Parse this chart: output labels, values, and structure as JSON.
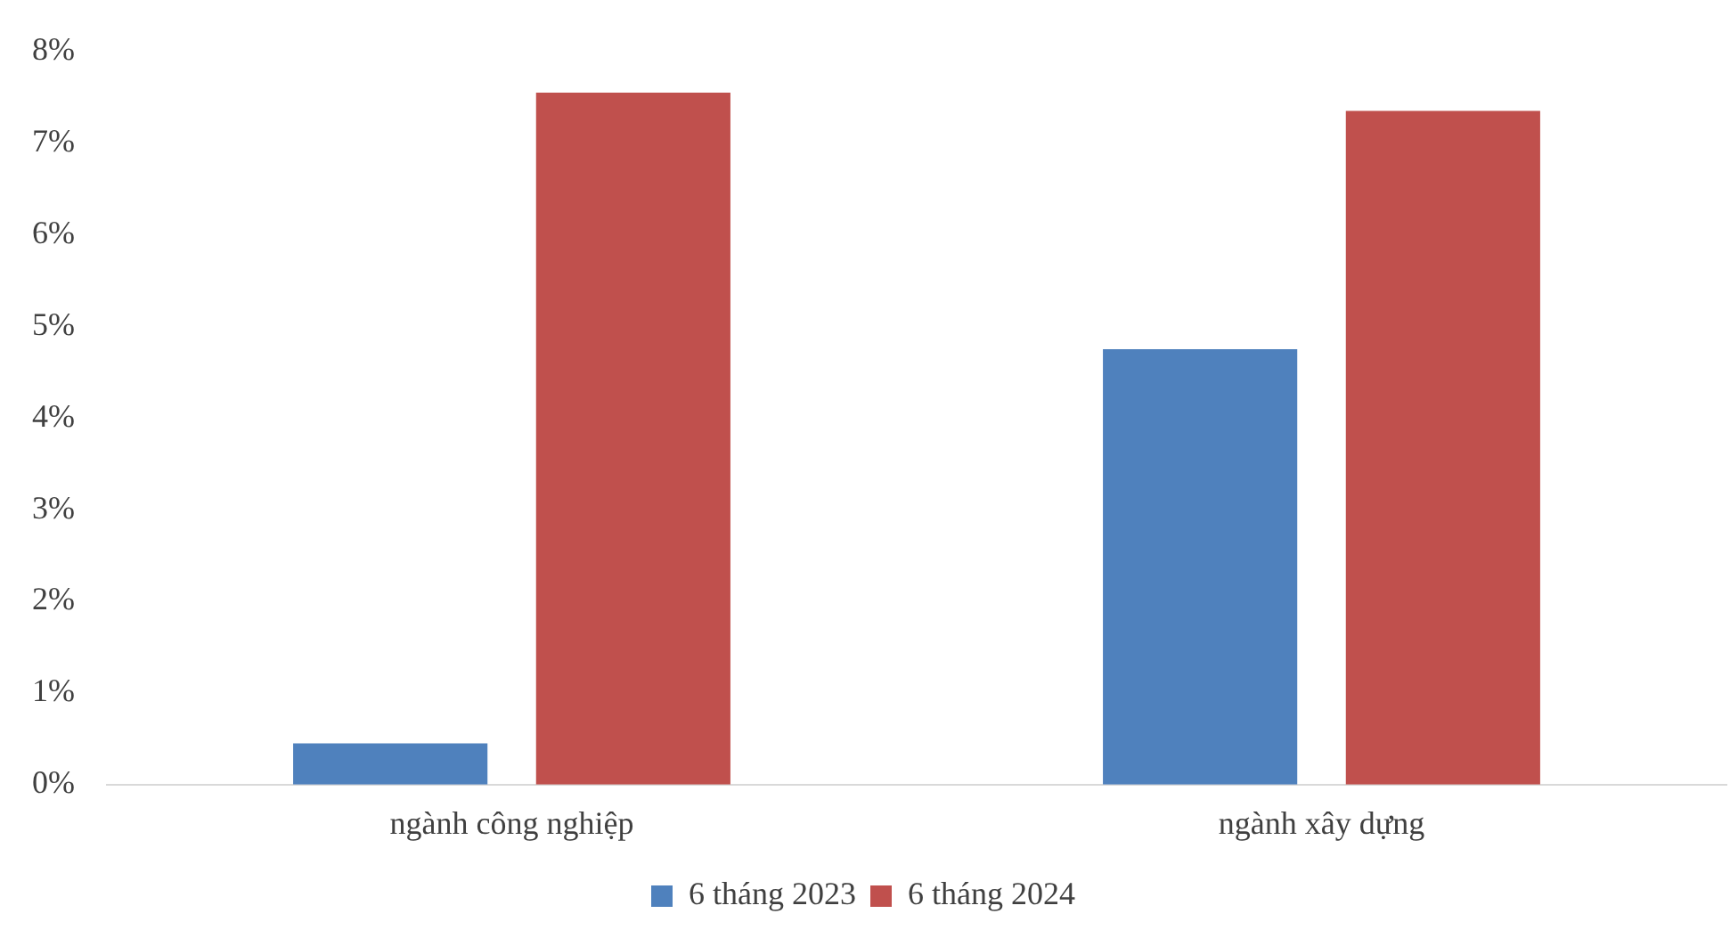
{
  "chart_data": {
    "type": "bar",
    "categories": [
      "ngành công nghiệp",
      "ngành xây dựng"
    ],
    "series": [
      {
        "name": "6 tháng 2023",
        "color": "#4f81bd",
        "values": [
          0.45,
          4.75
        ]
      },
      {
        "name": "6 tháng 2024",
        "color": "#c0504d",
        "values": [
          7.55,
          7.35
        ]
      }
    ],
    "ylim": [
      0,
      8
    ],
    "yticks": [
      {
        "value": 0,
        "label": "0%"
      },
      {
        "value": 1,
        "label": "1%"
      },
      {
        "value": 2,
        "label": "2%"
      },
      {
        "value": 3,
        "label": "3%"
      },
      {
        "value": 4,
        "label": "4%"
      },
      {
        "value": 5,
        "label": "5%"
      },
      {
        "value": 6,
        "label": "6%"
      },
      {
        "value": 7,
        "label": "7%"
      },
      {
        "value": 8,
        "label": "8%"
      }
    ],
    "grid": false,
    "legend": "bottom"
  }
}
